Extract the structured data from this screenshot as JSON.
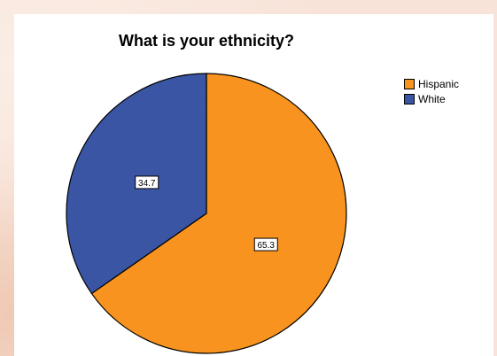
{
  "chart_data": {
    "type": "pie",
    "title": "What is your ethnicity?",
    "categories": [
      "Hispanic",
      "White"
    ],
    "values": [
      65.3,
      34.7
    ],
    "value_labels": [
      "65.3",
      "34.7"
    ],
    "colors": [
      "#f7931e",
      "#3a55a4"
    ],
    "legend_position": "top-right",
    "start_angle_deg": 0,
    "direction": "clockwise"
  }
}
